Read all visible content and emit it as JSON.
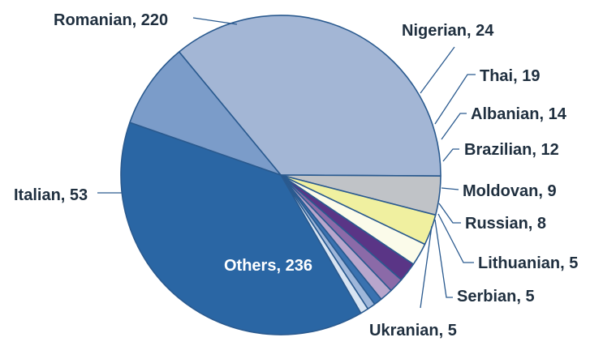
{
  "chart_data": {
    "type": "pie",
    "title": "",
    "categories": [
      "Romanian",
      "Nigerian",
      "Thai",
      "Albanian",
      "Brazilian",
      "Moldovan",
      "Russian",
      "Lithuanian",
      "Serbian",
      "Ukranian",
      "Others",
      "Italian"
    ],
    "values": [
      220,
      24,
      19,
      14,
      12,
      9,
      8,
      5,
      5,
      5,
      236,
      53
    ],
    "labels": [
      "Romanian, 220",
      "Nigerian, 24",
      "Thai, 19",
      "Albanian, 14",
      "Brazilian, 12",
      "Moldovan, 9",
      "Russian, 8",
      "Lithuanian, 5",
      "Serbian, 5",
      "Ukranian, 5",
      "Others, 236",
      "Italian, 53"
    ],
    "colors": [
      "#a3b6d5",
      "#c0c3c7",
      "#f0f0a0",
      "#fbfbea",
      "#5a3586",
      "#8b6aa8",
      "#b8a6cc",
      "#3a72b0",
      "#9fb7da",
      "#d8e4f2",
      "#2a66a4",
      "#7b9cc9"
    ],
    "legend": "none",
    "label_placement": "outside-with-leaders"
  }
}
